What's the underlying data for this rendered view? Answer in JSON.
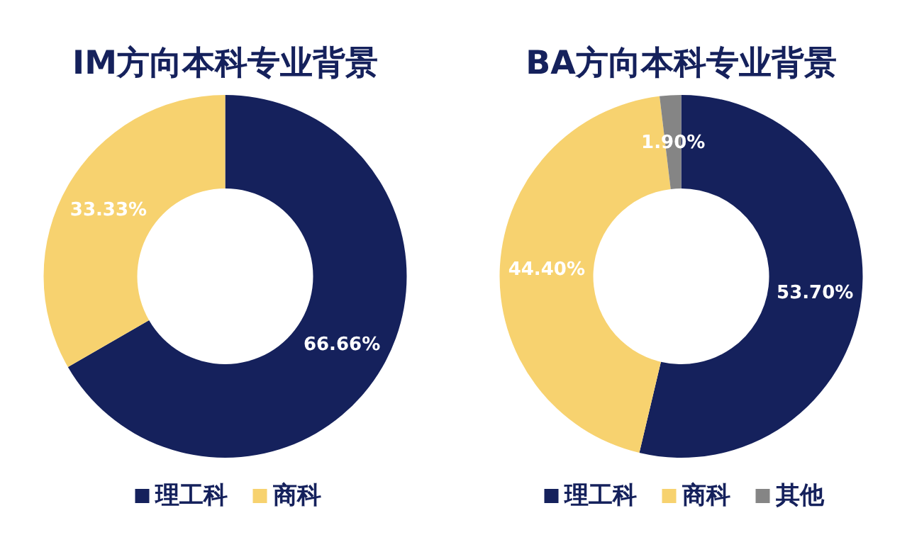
{
  "chart_data": [
    {
      "type": "donut",
      "title": "IM方向本科专业背景",
      "categories": [
        "理工科",
        "商科"
      ],
      "values": [
        66.66,
        33.33
      ],
      "colors": [
        "#15215c",
        "#f7d26f"
      ],
      "value_labels": [
        "66.66%",
        "33.33%"
      ],
      "legend": "bottom"
    },
    {
      "type": "donut",
      "title": "BA方向本科专业背景",
      "categories": [
        "理工科",
        "商科",
        "其他"
      ],
      "values": [
        53.7,
        44.4,
        1.9
      ],
      "colors": [
        "#15215c",
        "#f7d26f",
        "#858585"
      ],
      "value_labels": [
        "53.70%",
        "44.40%",
        "1.90%"
      ],
      "legend": "bottom"
    }
  ]
}
